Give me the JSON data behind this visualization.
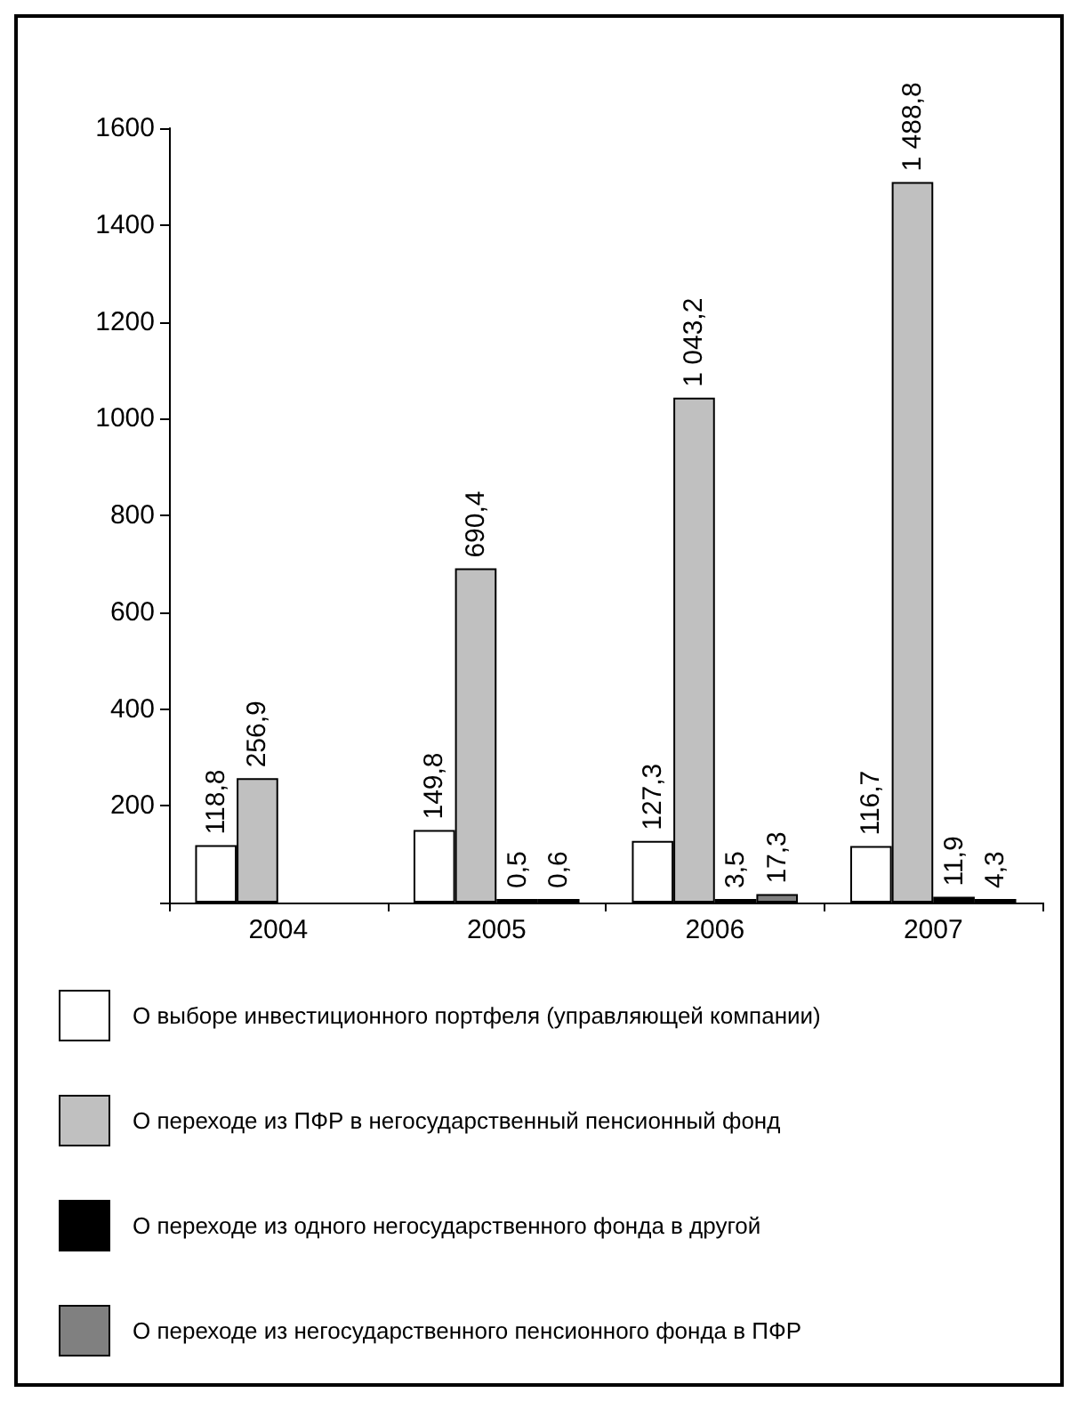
{
  "chart_data": {
    "type": "bar",
    "categories": [
      "2004",
      "2005",
      "2006",
      "2007"
    ],
    "series": [
      {
        "name": "О выборе инвестиционного портфеля (управляющей компании)",
        "color": "#ffffff",
        "values": [
          118.8,
          149.8,
          127.3,
          116.7
        ],
        "value_labels": [
          "118,8",
          "149,8",
          "127,3",
          "116,7"
        ]
      },
      {
        "name": "О переходе из ПФР в негосударственный пенсионный фонд",
        "color": "#c0c0c0",
        "values": [
          256.9,
          690.4,
          1043.2,
          1488.8
        ],
        "value_labels": [
          "256,9",
          "690,4",
          "1 043,2",
          "1 488,8"
        ]
      },
      {
        "name": "О переходе из одного негосударственного фонда в другой",
        "color": "#000000",
        "values": [
          null,
          0.5,
          3.5,
          11.9
        ],
        "value_labels": [
          null,
          "0,5",
          "3,5",
          "11,9"
        ]
      },
      {
        "name": "О переходе из негосударственного пенсионного фонда в ПФР",
        "color": "#808080",
        "values": [
          null,
          0.6,
          17.3,
          4.3
        ],
        "value_labels": [
          null,
          "0,6",
          "17,3",
          "4,3"
        ]
      }
    ],
    "ylim": [
      0,
      1600
    ],
    "yticks": [
      {
        "value": 0,
        "label": null
      },
      200,
      400,
      600,
      800,
      1000,
      1200,
      1400,
      1600
    ],
    "legend": "bottom"
  }
}
